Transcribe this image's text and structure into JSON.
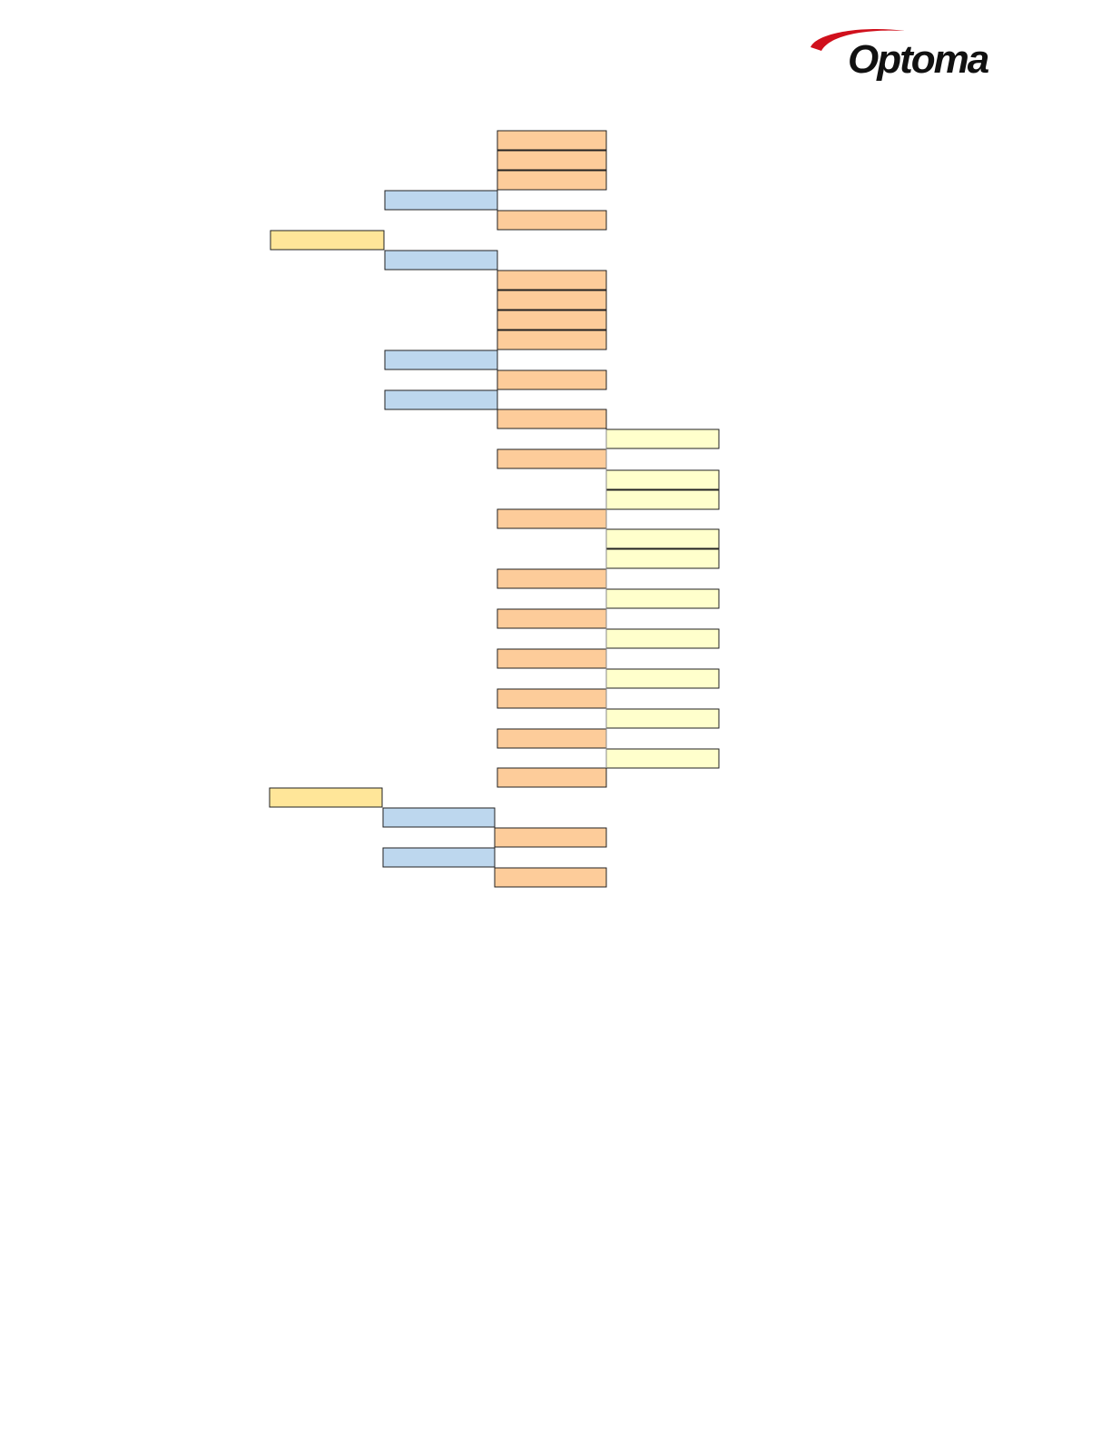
{
  "header": {
    "logo": "Optoma"
  }
}
